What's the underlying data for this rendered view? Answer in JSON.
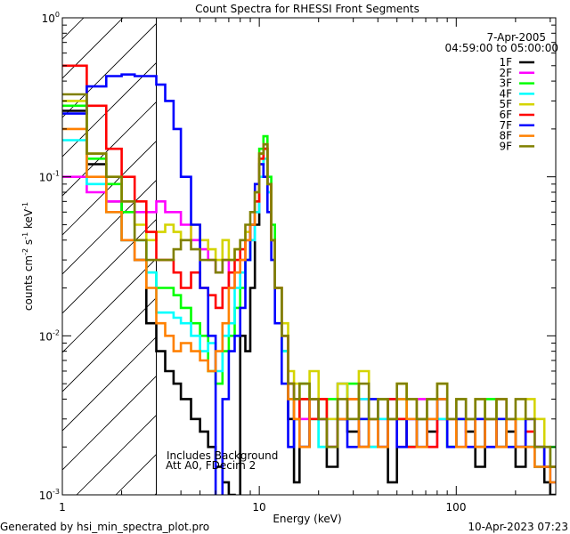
{
  "chart_data": {
    "type": "line",
    "title": "Count Spectra for RHESSI Front Segments",
    "xlabel": "Energy (keV)",
    "ylabel": "counts cm^-2 s^-1 keV^-1",
    "ylabel_parts": {
      "a": "counts cm",
      "b": "-2",
      "c": " s",
      "d": "-1",
      "e": " keV",
      "f": "-1"
    },
    "xscale": "log",
    "yscale": "log",
    "xlim": [
      1,
      320
    ],
    "ylim": [
      0.001,
      1
    ],
    "x_tick_labels": [
      "1",
      "10",
      "100"
    ],
    "y_tick_labels": [
      {
        "base": "10",
        "exp": "0"
      },
      {
        "base": "10",
        "exp": "-1"
      },
      {
        "base": "10",
        "exp": "-2"
      },
      {
        "base": "10",
        "exp": "-3"
      }
    ],
    "date": "7-Apr-2005",
    "time_range": "04:59:00 to 05:00:00",
    "annotations": [
      "Includes Background",
      "Att A0, FDecim 2"
    ],
    "shaded_region_keV": [
      1,
      3
    ],
    "legend_position": "top-right",
    "energy_edges": [
      1,
      1.33,
      1.67,
      2,
      2.33,
      2.67,
      3,
      3.33,
      3.67,
      4,
      4.5,
      5,
      5.5,
      6,
      6.5,
      7,
      7.5,
      8,
      8.5,
      9,
      9.5,
      10,
      10.5,
      11,
      11.5,
      12,
      13,
      14,
      15,
      16,
      18,
      20,
      22,
      25,
      28,
      32,
      36,
      40,
      45,
      50,
      56,
      63,
      71,
      80,
      90,
      100,
      112,
      125,
      140,
      160,
      180,
      200,
      225,
      250,
      280,
      300,
      320
    ],
    "series": [
      {
        "name": "1F",
        "color": "#000000",
        "values": [
          0.26,
          0.12,
          0.07,
          0.04,
          0.03,
          0.012,
          0.008,
          0.006,
          0.005,
          0.004,
          0.003,
          0.0025,
          0.002,
          0.0015,
          0.0012,
          0.001,
          0.0009,
          0.01,
          0.008,
          0.02,
          0.05,
          0.12,
          0.15,
          0.09,
          0.04,
          0.02,
          0.008,
          0.003,
          0.0012,
          0.002,
          0.004,
          0.003,
          0.0015,
          0.003,
          0.0025,
          0.002,
          0.003,
          0.004,
          0.0012,
          0.003,
          0.002,
          0.003,
          0.0025,
          0.003,
          0.002,
          0.003,
          0.0025,
          0.0015,
          0.003,
          0.002,
          0.0025,
          0.0015,
          0.002,
          0.0015,
          0.0012,
          0.001
        ]
      },
      {
        "name": "2F",
        "color": "#ff00ff",
        "values": [
          0.1,
          0.08,
          0.07,
          0.07,
          0.06,
          0.06,
          0.07,
          0.06,
          0.06,
          0.05,
          0.04,
          0.035,
          0.03,
          0.025,
          0.03,
          0.02,
          0.025,
          0.03,
          0.04,
          0.04,
          0.06,
          0.12,
          0.15,
          0.08,
          0.04,
          0.02,
          0.01,
          0.005,
          0.004,
          0.003,
          0.004,
          0.003,
          0.002,
          0.005,
          0.003,
          0.004,
          0.002,
          0.003,
          0.004,
          0.002,
          0.003,
          0.004,
          0.002,
          0.003,
          0.003,
          0.004,
          0.002,
          0.003,
          0.002,
          0.004,
          0.003,
          0.002,
          0.003,
          0.002,
          0.0015,
          0.002
        ]
      },
      {
        "name": "3F",
        "color": "#00ff00",
        "values": [
          0.28,
          0.13,
          0.09,
          0.06,
          0.04,
          0.025,
          0.02,
          0.02,
          0.018,
          0.015,
          0.012,
          0.01,
          0.006,
          0.005,
          0.008,
          0.01,
          0.015,
          0.02,
          0.03,
          0.05,
          0.08,
          0.15,
          0.18,
          0.1,
          0.05,
          0.02,
          0.008,
          0.004,
          0.003,
          0.005,
          0.003,
          0.002,
          0.004,
          0.003,
          0.005,
          0.003,
          0.002,
          0.004,
          0.003,
          0.004,
          0.002,
          0.003,
          0.003,
          0.004,
          0.002,
          0.003,
          0.003,
          0.002,
          0.004,
          0.003,
          0.002,
          0.003,
          0.002,
          0.002,
          0.0015,
          0.002
        ]
      },
      {
        "name": "4F",
        "color": "#00ffff",
        "values": [
          0.17,
          0.09,
          0.06,
          0.04,
          0.04,
          0.025,
          0.014,
          0.014,
          0.013,
          0.012,
          0.01,
          0.008,
          0.009,
          0.006,
          0.01,
          0.012,
          0.02,
          0.025,
          0.03,
          0.04,
          0.06,
          0.1,
          0.13,
          0.08,
          0.04,
          0.02,
          0.008,
          0.005,
          0.003,
          0.004,
          0.003,
          0.002,
          0.003,
          0.005,
          0.003,
          0.004,
          0.002,
          0.003,
          0.004,
          0.003,
          0.002,
          0.003,
          0.004,
          0.003,
          0.002,
          0.004,
          0.003,
          0.002,
          0.003,
          0.002,
          0.003,
          0.002,
          0.002,
          0.0015,
          0.002,
          0.0015
        ]
      },
      {
        "name": "5F",
        "color": "#d4d400",
        "values": [
          0.3,
          0.14,
          0.1,
          0.07,
          0.05,
          0.04,
          0.045,
          0.05,
          0.045,
          0.04,
          0.05,
          0.04,
          0.035,
          0.03,
          0.04,
          0.03,
          0.035,
          0.04,
          0.045,
          0.05,
          0.07,
          0.13,
          0.16,
          0.09,
          0.04,
          0.02,
          0.012,
          0.006,
          0.005,
          0.004,
          0.006,
          0.004,
          0.003,
          0.005,
          0.004,
          0.006,
          0.003,
          0.004,
          0.003,
          0.005,
          0.004,
          0.003,
          0.004,
          0.005,
          0.003,
          0.004,
          0.003,
          0.004,
          0.003,
          0.004,
          0.003,
          0.003,
          0.004,
          0.003,
          0.002,
          0.0015
        ]
      },
      {
        "name": "6F",
        "color": "#ff0000",
        "values": [
          0.5,
          0.28,
          0.15,
          0.1,
          0.07,
          0.045,
          0.03,
          0.03,
          0.025,
          0.02,
          0.025,
          0.02,
          0.018,
          0.015,
          0.02,
          0.025,
          0.03,
          0.035,
          0.04,
          0.05,
          0.07,
          0.13,
          0.15,
          0.09,
          0.04,
          0.02,
          0.01,
          0.005,
          0.003,
          0.004,
          0.003,
          0.004,
          0.002,
          0.003,
          0.004,
          0.002,
          0.003,
          0.002,
          0.004,
          0.003,
          0.002,
          0.003,
          0.002,
          0.004,
          0.003,
          0.002,
          0.003,
          0.002,
          0.003,
          0.002,
          0.003,
          0.002,
          0.0025,
          0.002,
          0.0015,
          0.0015
        ]
      },
      {
        "name": "7F",
        "color": "#0000ff",
        "values": [
          0.25,
          0.37,
          0.43,
          0.44,
          0.43,
          0.43,
          0.38,
          0.3,
          0.2,
          0.1,
          0.05,
          0.02,
          0.01,
          0.0008,
          0.004,
          0.008,
          0.01,
          0.015,
          0.03,
          0.05,
          0.09,
          0.12,
          0.1,
          0.06,
          0.03,
          0.012,
          0.005,
          0.002,
          0.003,
          0.002,
          0.004,
          0.003,
          0.002,
          0.003,
          0.002,
          0.003,
          0.004,
          0.002,
          0.003,
          0.002,
          0.003,
          0.002,
          0.003,
          0.004,
          0.002,
          0.003,
          0.002,
          0.003,
          0.002,
          0.003,
          0.002,
          0.002,
          0.003,
          0.002,
          0.0015,
          0.0012
        ]
      },
      {
        "name": "8F",
        "color": "#ff8000",
        "values": [
          0.2,
          0.1,
          0.06,
          0.04,
          0.03,
          0.02,
          0.012,
          0.01,
          0.008,
          0.009,
          0.008,
          0.007,
          0.006,
          0.008,
          0.012,
          0.02,
          0.025,
          0.03,
          0.04,
          0.05,
          0.08,
          0.14,
          0.16,
          0.09,
          0.04,
          0.02,
          0.01,
          0.004,
          0.003,
          0.002,
          0.004,
          0.003,
          0.002,
          0.003,
          0.004,
          0.002,
          0.003,
          0.002,
          0.003,
          0.004,
          0.003,
          0.002,
          0.003,
          0.004,
          0.003,
          0.002,
          0.003,
          0.002,
          0.003,
          0.002,
          0.003,
          0.002,
          0.002,
          0.0015,
          0.0015,
          0.0012
        ]
      },
      {
        "name": "9F",
        "color": "#808000",
        "values": [
          0.33,
          0.14,
          0.1,
          0.07,
          0.04,
          0.03,
          0.03,
          0.03,
          0.035,
          0.04,
          0.035,
          0.03,
          0.03,
          0.025,
          0.03,
          0.03,
          0.035,
          0.04,
          0.05,
          0.06,
          0.08,
          0.14,
          0.16,
          0.09,
          0.04,
          0.02,
          0.01,
          0.005,
          0.004,
          0.005,
          0.004,
          0.003,
          0.002,
          0.004,
          0.003,
          0.005,
          0.003,
          0.004,
          0.003,
          0.005,
          0.004,
          0.003,
          0.004,
          0.005,
          0.003,
          0.004,
          0.003,
          0.004,
          0.003,
          0.004,
          0.003,
          0.004,
          0.003,
          0.002,
          0.002,
          0.0015
        ]
      }
    ]
  },
  "footer": {
    "generated_by": "Generated by hsi_min_spectra_plot.pro",
    "timestamp": "10-Apr-2023 07:23"
  }
}
